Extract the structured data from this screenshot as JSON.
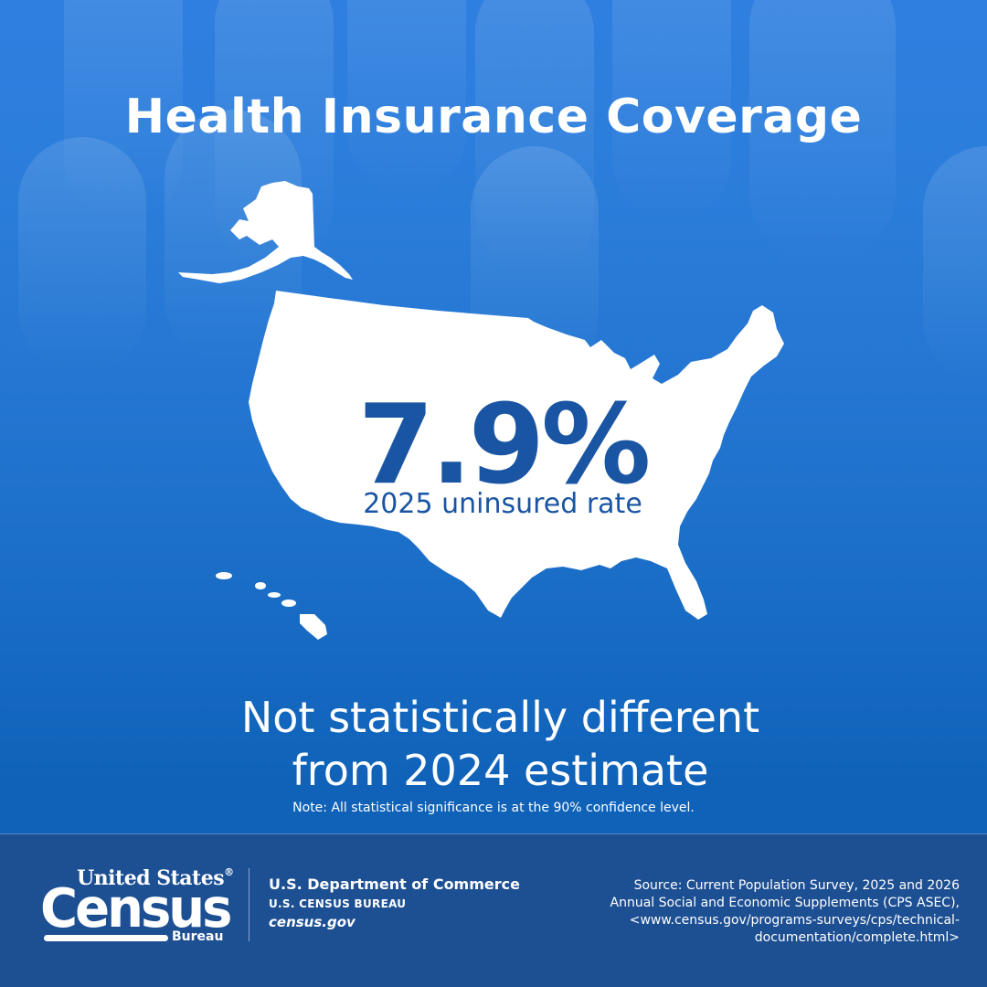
{
  "title": "Health Insurance Coverage",
  "rate": {
    "value": "7.9%",
    "label": "2025 uninsured rate"
  },
  "statement": {
    "line1": "Not statistically different",
    "line2": "from 2024 estimate"
  },
  "note": "Note: All statistical significance is at the 90% confidence level.",
  "footer": {
    "logo": {
      "top_text": "United States",
      "reg_mark": "®",
      "main_text": "Census",
      "sub_text": "Bureau"
    },
    "department": "U.S. Department of Commerce",
    "bureau": "U.S. CENSUS BUREAU",
    "site": "census.gov",
    "source_lines": [
      "Source: Current Population Survey, 2025 and 2026",
      "Annual Social and Economic Supplements (CPS ASEC),",
      "<www.census.gov/programs-surveys/cps/technical-",
      "documentation/complete.html>"
    ]
  },
  "colors": {
    "accent_blue": "#1a55a3",
    "footer_bg": "#1d4f93",
    "map_fill": "#ffffff"
  }
}
